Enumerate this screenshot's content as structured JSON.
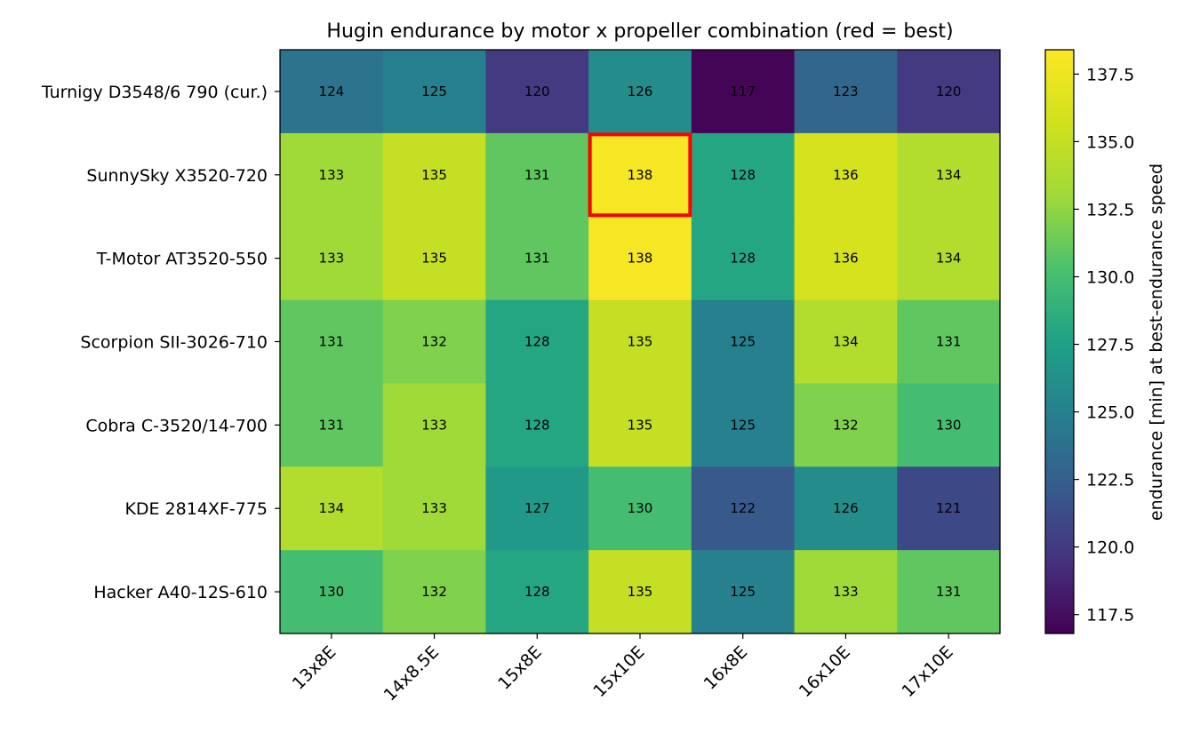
{
  "chart_data": {
    "type": "heatmap",
    "title": "Hugin endurance by motor x propeller combination (red = best)",
    "x_categories": [
      "13x8E",
      "14x8.5E",
      "15x8E",
      "15x10E",
      "16x8E",
      "16x10E",
      "17x10E"
    ],
    "y_categories": [
      "Turnigy D3548/6 790 (cur.)",
      "SunnySky X3520-720",
      "T-Motor AT3520-550",
      "Scorpion SII-3026-710",
      "Cobra C-3520/14-700",
      "KDE 2814XF-775",
      "Hacker A40-12S-610"
    ],
    "values": [
      [
        124,
        125,
        120,
        126,
        117,
        123,
        120
      ],
      [
        133,
        135,
        131,
        138,
        128,
        136,
        134
      ],
      [
        133,
        135,
        131,
        138,
        128,
        136,
        134
      ],
      [
        131,
        132,
        128,
        135,
        125,
        134,
        131
      ],
      [
        131,
        133,
        128,
        135,
        125,
        132,
        130
      ],
      [
        134,
        133,
        127,
        130,
        122,
        126,
        121
      ],
      [
        130,
        132,
        128,
        135,
        125,
        133,
        131
      ]
    ],
    "colormap": "viridis",
    "vmin": 116.8,
    "vmax": 138.4,
    "highlight": {
      "row": 1,
      "col": 3,
      "color": "#ff0000"
    },
    "colorbar": {
      "label": "endurance [min] at best-endurance speed",
      "ticks": [
        "117.5",
        "120.0",
        "122.5",
        "125.0",
        "127.5",
        "130.0",
        "132.5",
        "135.0",
        "137.5"
      ]
    }
  }
}
